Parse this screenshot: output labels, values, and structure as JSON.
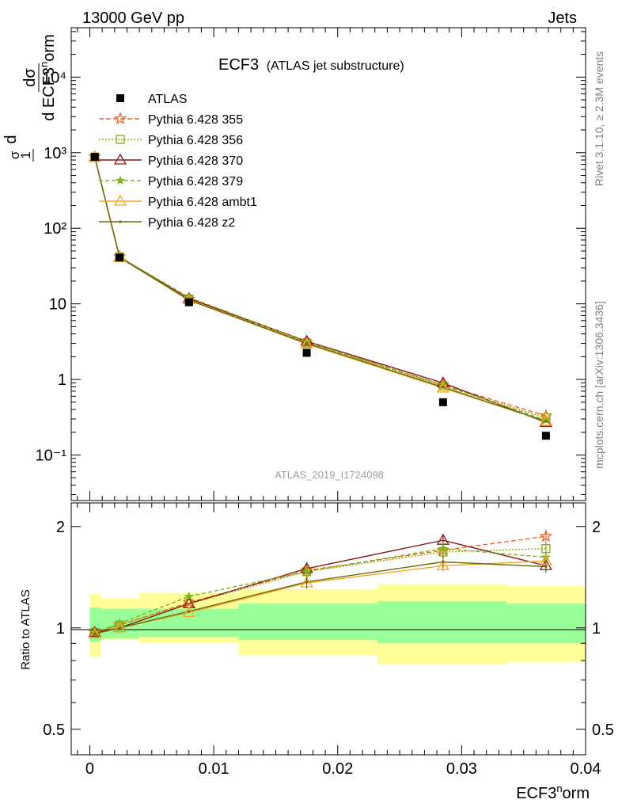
{
  "header": {
    "left": "13000 GeV pp",
    "right": "Jets"
  },
  "side_text": {
    "rivet": "Rivet 3.1.10, ≥ 2.3M events",
    "site": "mcplots.cern.ch [arXiv:1306.3436]"
  },
  "chart_data": [
    {
      "type": "line",
      "panel": "main",
      "title": "ECF3",
      "subtitle": "(ATLAS jet substructure)",
      "watermark": "ATLAS_2019_I1724098",
      "xlabel": "ECF3ⁿorm",
      "ylabel": "dσ / d ECF3ⁿorm · 1/σ",
      "yscale": "log",
      "ylim": [
        0.025,
        45000
      ],
      "xlim": [
        -0.0015,
        0.04
      ],
      "y_tick_labels": [
        "10⁻¹",
        "1",
        "10",
        "10²",
        "10³",
        "10⁴"
      ],
      "y_tick_values": [
        0.1,
        1,
        10,
        100,
        1000,
        10000
      ],
      "legend_placement": "top-left",
      "x": [
        0.0004,
        0.0024,
        0.008,
        0.0175,
        0.0285,
        0.0368
      ],
      "data": {
        "name": "ATLAS",
        "values": [
          880,
          41,
          10.5,
          2.25,
          0.5,
          0.18
        ]
      },
      "series": [
        {
          "name": "Pythia 6.428 355",
          "color": "#f26522",
          "dash": "6,3",
          "marker": "star-open",
          "values": [
            880,
            42,
            11.5,
            3.1,
            0.85,
            0.33
          ]
        },
        {
          "name": "Pythia 6.428 356",
          "color": "#8faa0e",
          "dash": "2,2",
          "marker": "square-open",
          "values": [
            875,
            42,
            11.6,
            3.05,
            0.82,
            0.31
          ]
        },
        {
          "name": "Pythia 6.428 370",
          "color": "#8b1a1a",
          "dash": "",
          "marker": "triangle-open",
          "values": [
            870,
            41.5,
            11.8,
            3.2,
            0.9,
            0.27
          ]
        },
        {
          "name": "Pythia 6.428 379",
          "color": "#7cb518",
          "dash": "5,3",
          "marker": "star",
          "values": [
            880,
            42,
            12.2,
            3.15,
            0.84,
            0.29
          ]
        },
        {
          "name": "Pythia 6.428 ambt1",
          "color": "#f5a623",
          "dash": "",
          "marker": "triangle-open",
          "values": [
            870,
            41,
            11.3,
            2.95,
            0.77,
            0.28
          ]
        },
        {
          "name": "Pythia 6.428 z2",
          "color": "#6b6b12",
          "dash": "",
          "marker": "dot",
          "values": [
            870,
            41,
            11.2,
            3.0,
            0.79,
            0.28
          ]
        }
      ]
    },
    {
      "type": "line",
      "panel": "ratio",
      "ylabel": "Ratio to ATLAS",
      "xlabel": "ECF3ⁿorm",
      "yscale": "log",
      "ylim": [
        0.42,
        2.35
      ],
      "y_tick_values": [
        0.5,
        1,
        2
      ],
      "y_tick_labels": [
        "0.5",
        "1",
        "2"
      ],
      "x_tick_values": [
        0,
        0.01,
        0.02,
        0.03,
        0.04
      ],
      "x_tick_labels": [
        "0",
        "0.01",
        "0.02",
        "0.03",
        "0.04"
      ],
      "bins": [
        0.0,
        0.0009,
        0.004,
        0.012,
        0.0232,
        0.0336,
        0.04
      ],
      "band_stat": [
        [
          0.91,
          1.15
        ],
        [
          0.93,
          1.14
        ],
        [
          0.94,
          1.14
        ],
        [
          0.92,
          1.18
        ],
        [
          0.9,
          1.2
        ],
        [
          0.9,
          1.18
        ]
      ],
      "band_total": [
        [
          0.82,
          1.26
        ],
        [
          0.92,
          1.22
        ],
        [
          0.9,
          1.27
        ],
        [
          0.83,
          1.3
        ],
        [
          0.78,
          1.35
        ],
        [
          0.79,
          1.33
        ]
      ],
      "x": [
        0.0004,
        0.0024,
        0.008,
        0.0175,
        0.0285,
        0.0368
      ],
      "series": [
        {
          "name": "Pythia 6.428 355",
          "values": [
            0.97,
            1.02,
            1.19,
            1.48,
            1.7,
            1.87
          ]
        },
        {
          "name": "Pythia 6.428 356",
          "values": [
            0.97,
            1.02,
            1.18,
            1.47,
            1.68,
            1.72
          ]
        },
        {
          "name": "Pythia 6.428 370",
          "values": [
            0.97,
            1.0,
            1.18,
            1.5,
            1.82,
            1.53
          ]
        },
        {
          "name": "Pythia 6.428 379",
          "values": [
            0.97,
            1.03,
            1.24,
            1.47,
            1.72,
            1.62
          ]
        },
        {
          "name": "Pythia 6.428 ambt1",
          "values": [
            0.96,
            1.0,
            1.11,
            1.36,
            1.53,
            1.58
          ]
        },
        {
          "name": "Pythia 6.428 z2",
          "values": [
            0.96,
            1.0,
            1.12,
            1.37,
            1.57,
            1.52
          ]
        }
      ]
    }
  ]
}
